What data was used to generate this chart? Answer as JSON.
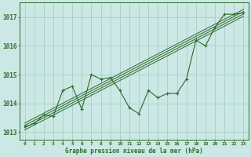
{
  "x": [
    0,
    1,
    2,
    3,
    4,
    5,
    6,
    7,
    8,
    9,
    10,
    11,
    12,
    13,
    14,
    15,
    16,
    17,
    18,
    19,
    20,
    21,
    22,
    23
  ],
  "y_main": [
    1013.2,
    1013.3,
    1013.6,
    1013.55,
    1014.45,
    1014.6,
    1013.8,
    1015.0,
    1014.85,
    1014.9,
    1014.45,
    1013.85,
    1013.65,
    1014.45,
    1014.2,
    1014.35,
    1014.35,
    1014.85,
    1016.2,
    1016.0,
    1016.65,
    1017.1,
    1017.1,
    1017.15
  ],
  "trend_x": [
    0,
    23
  ],
  "trend_y": [
    1013.2,
    1017.15
  ],
  "trend_offsets": [
    -0.12,
    -0.04,
    0.04,
    0.12
  ],
  "background_color": "#cce8e4",
  "grid_color": "#a8cfc8",
  "line_color": "#2d6a2d",
  "xlabel": "Graphe pression niveau de la mer (hPa)",
  "ylim": [
    1012.75,
    1017.5
  ],
  "xlim": [
    -0.5,
    23.5
  ],
  "yticks": [
    1013,
    1014,
    1015,
    1016,
    1017
  ],
  "xticks": [
    0,
    1,
    2,
    3,
    4,
    5,
    6,
    7,
    8,
    9,
    10,
    11,
    12,
    13,
    14,
    15,
    16,
    17,
    18,
    19,
    20,
    21,
    22,
    23
  ],
  "xtick_labels": [
    "0",
    "1",
    "2",
    "3",
    "4",
    "5",
    "6",
    "7",
    "8",
    "9",
    "10",
    "11",
    "12",
    "13",
    "14",
    "15",
    "16",
    "17",
    "18",
    "19",
    "20",
    "21",
    "22",
    "23"
  ],
  "figsize": [
    3.2,
    2.0
  ],
  "dpi": 100
}
